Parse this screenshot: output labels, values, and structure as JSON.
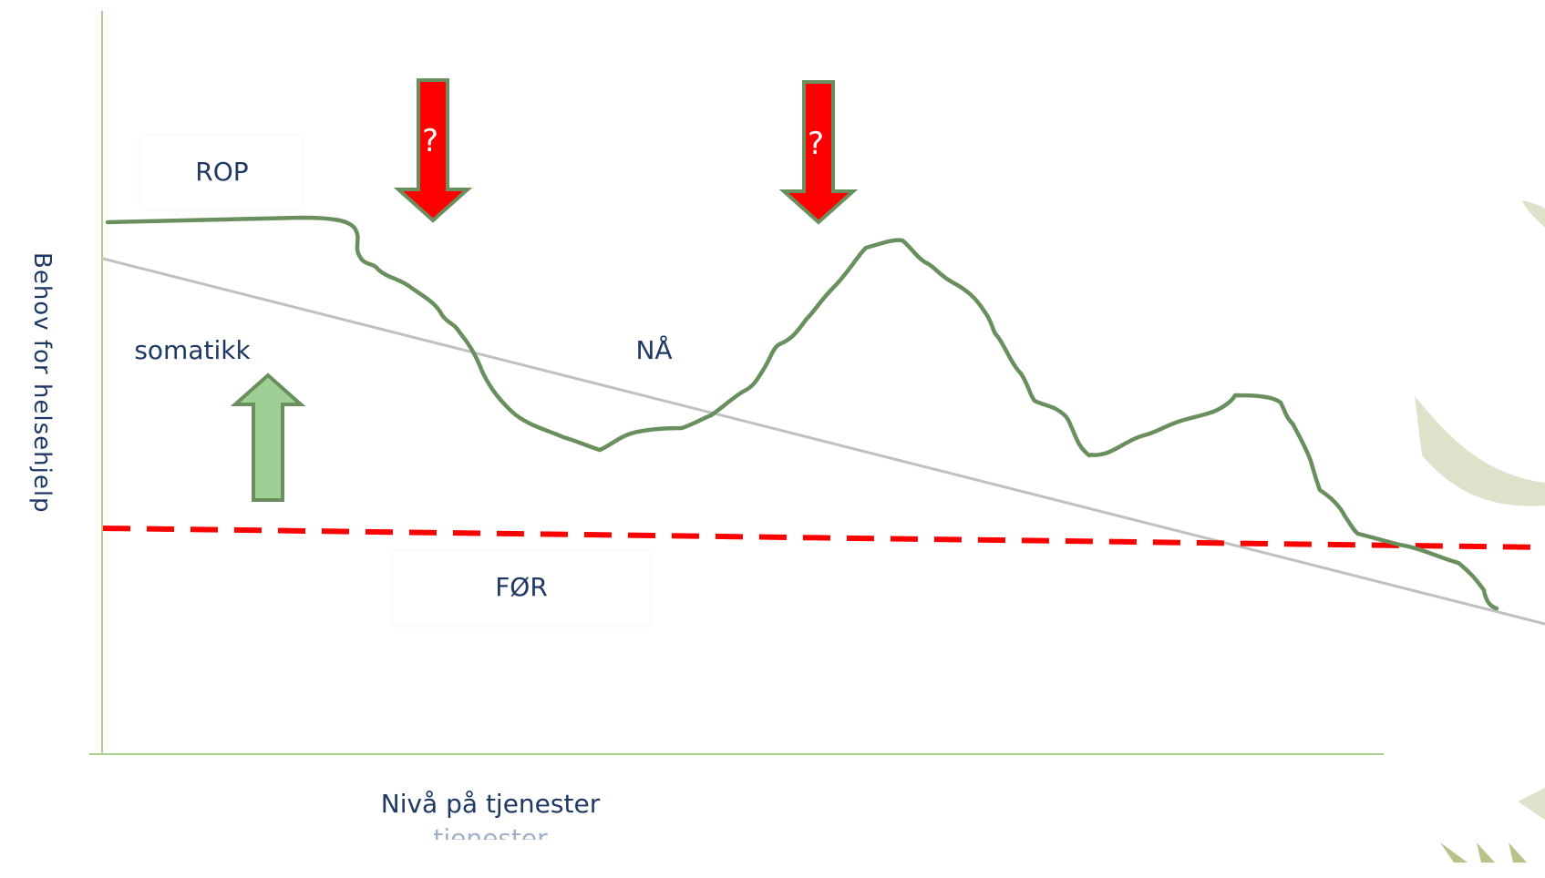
{
  "labels": {
    "rop": "ROP",
    "somatikk": "somatikk",
    "na": "NÅ",
    "for": "FØR",
    "y_axis": "Behov for helsehjelp",
    "x_axis": "Nivå på tjenester",
    "x_axis_ghost": "tjenester",
    "question_left": "?",
    "question_right": "?"
  },
  "colors": {
    "axis": "#a9d18e",
    "curve": "#6a8f5e",
    "trend": "#c0c0c0",
    "threshold": "#ff0000",
    "arrow_down_fill": "#ff0000",
    "arrow_down_border": "#6a8f5e",
    "arrow_up_fill": "#a0cf96",
    "arrow_up_border": "#6a8f5e",
    "logo_leaf": "#c9cfa8"
  },
  "icons": {
    "down_arrow": "arrow-down-icon",
    "up_arrow": "arrow-up-icon",
    "logo_fragment": "leaf-logo-icon"
  }
}
